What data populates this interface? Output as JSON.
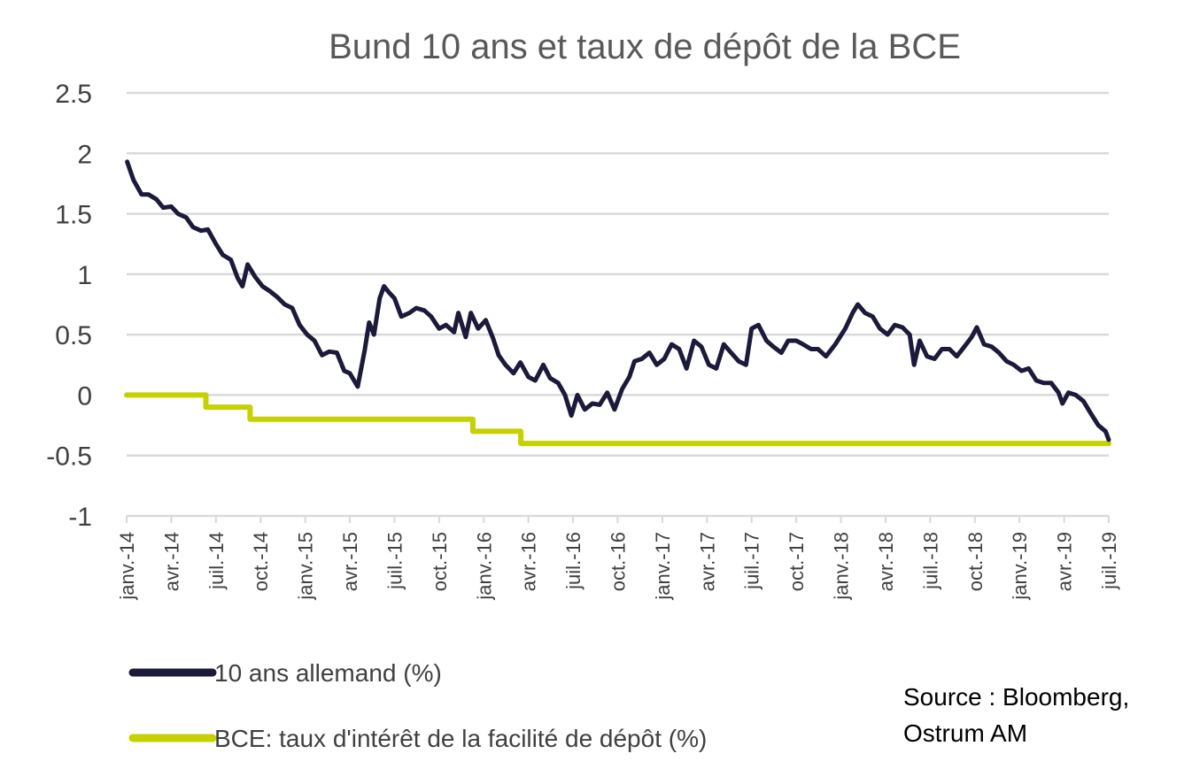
{
  "chart_data": {
    "type": "line",
    "title": "Bund 10 ans et taux de dépôt de la BCE",
    "xlabel": "",
    "ylabel": "",
    "ylim": [
      -1,
      2.5
    ],
    "yticks": [
      "2.5",
      "2",
      "1.5",
      "1",
      "0.5",
      "0",
      "-0.5",
      "-1"
    ],
    "ytick_values": [
      2.5,
      2,
      1.5,
      1,
      0.5,
      0,
      -0.5,
      -1
    ],
    "x_range": [
      "2014-01",
      "2019-07"
    ],
    "xtick_labels": [
      "janv.-14",
      "avr.-14",
      "juil.-14",
      "oct.-14",
      "janv.-15",
      "avr.-15",
      "juil.-15",
      "oct.-15",
      "janv.-16",
      "avr.-16",
      "juil.-16",
      "oct.-16",
      "janv.-17",
      "avr.-17",
      "juil.-17",
      "oct.-17",
      "janv.-18",
      "avr.-18",
      "juil.-18",
      "oct.-18",
      "janv.-19",
      "avr.-19",
      "juil.-19"
    ],
    "grid": true,
    "legend_position": "bottom-left",
    "series": [
      {
        "name": "10 ans allemand (%)",
        "color": "#1b1a3a",
        "points": [
          [
            "2014-01-02",
            1.93
          ],
          [
            "2014-01-15",
            1.78
          ],
          [
            "2014-02-01",
            1.66
          ],
          [
            "2014-02-15",
            1.66
          ],
          [
            "2014-03-01",
            1.62
          ],
          [
            "2014-03-15",
            1.55
          ],
          [
            "2014-04-01",
            1.56
          ],
          [
            "2014-04-15",
            1.5
          ],
          [
            "2014-05-01",
            1.47
          ],
          [
            "2014-05-15",
            1.39
          ],
          [
            "2014-06-01",
            1.36
          ],
          [
            "2014-06-15",
            1.37
          ],
          [
            "2014-07-01",
            1.25
          ],
          [
            "2014-07-15",
            1.16
          ],
          [
            "2014-08-01",
            1.12
          ],
          [
            "2014-08-15",
            0.97
          ],
          [
            "2014-08-25",
            0.9
          ],
          [
            "2014-09-05",
            1.08
          ],
          [
            "2014-09-20",
            0.98
          ],
          [
            "2014-10-05",
            0.9
          ],
          [
            "2014-10-20",
            0.86
          ],
          [
            "2014-11-05",
            0.81
          ],
          [
            "2014-11-20",
            0.75
          ],
          [
            "2014-12-05",
            0.72
          ],
          [
            "2014-12-20",
            0.58
          ],
          [
            "2015-01-05",
            0.5
          ],
          [
            "2015-01-20",
            0.45
          ],
          [
            "2015-02-05",
            0.33
          ],
          [
            "2015-02-20",
            0.36
          ],
          [
            "2015-03-05",
            0.35
          ],
          [
            "2015-03-20",
            0.2
          ],
          [
            "2015-04-01",
            0.18
          ],
          [
            "2015-04-17",
            0.07
          ],
          [
            "2015-05-01",
            0.37
          ],
          [
            "2015-05-10",
            0.6
          ],
          [
            "2015-05-20",
            0.5
          ],
          [
            "2015-06-01",
            0.8
          ],
          [
            "2015-06-10",
            0.9
          ],
          [
            "2015-06-20",
            0.85
          ],
          [
            "2015-07-01",
            0.8
          ],
          [
            "2015-07-15",
            0.65
          ],
          [
            "2015-08-01",
            0.68
          ],
          [
            "2015-08-15",
            0.72
          ],
          [
            "2015-09-01",
            0.7
          ],
          [
            "2015-09-15",
            0.65
          ],
          [
            "2015-10-01",
            0.55
          ],
          [
            "2015-10-15",
            0.58
          ],
          [
            "2015-11-01",
            0.52
          ],
          [
            "2015-11-10",
            0.68
          ],
          [
            "2015-11-25",
            0.48
          ],
          [
            "2015-12-05",
            0.68
          ],
          [
            "2015-12-20",
            0.55
          ],
          [
            "2016-01-05",
            0.62
          ],
          [
            "2016-01-20",
            0.47
          ],
          [
            "2016-02-01",
            0.33
          ],
          [
            "2016-02-15",
            0.25
          ],
          [
            "2016-03-01",
            0.18
          ],
          [
            "2016-03-15",
            0.27
          ],
          [
            "2016-04-01",
            0.15
          ],
          [
            "2016-04-15",
            0.12
          ],
          [
            "2016-05-01",
            0.25
          ],
          [
            "2016-05-15",
            0.14
          ],
          [
            "2016-06-01",
            0.1
          ],
          [
            "2016-06-15",
            0.0
          ],
          [
            "2016-06-28",
            -0.17
          ],
          [
            "2016-07-10",
            0.0
          ],
          [
            "2016-07-25",
            -0.12
          ],
          [
            "2016-08-10",
            -0.07
          ],
          [
            "2016-08-25",
            -0.08
          ],
          [
            "2016-09-10",
            0.02
          ],
          [
            "2016-09-25",
            -0.12
          ],
          [
            "2016-10-10",
            0.05
          ],
          [
            "2016-10-25",
            0.15
          ],
          [
            "2016-11-05",
            0.28
          ],
          [
            "2016-11-20",
            0.3
          ],
          [
            "2016-12-05",
            0.35
          ],
          [
            "2016-12-20",
            0.25
          ],
          [
            "2017-01-05",
            0.3
          ],
          [
            "2017-01-20",
            0.42
          ],
          [
            "2017-02-05",
            0.38
          ],
          [
            "2017-02-20",
            0.22
          ],
          [
            "2017-03-05",
            0.45
          ],
          [
            "2017-03-20",
            0.4
          ],
          [
            "2017-04-05",
            0.25
          ],
          [
            "2017-04-20",
            0.22
          ],
          [
            "2017-05-05",
            0.42
          ],
          [
            "2017-05-20",
            0.35
          ],
          [
            "2017-06-05",
            0.28
          ],
          [
            "2017-06-20",
            0.25
          ],
          [
            "2017-07-01",
            0.55
          ],
          [
            "2017-07-15",
            0.58
          ],
          [
            "2017-08-01",
            0.45
          ],
          [
            "2017-08-15",
            0.4
          ],
          [
            "2017-09-01",
            0.35
          ],
          [
            "2017-09-15",
            0.45
          ],
          [
            "2017-10-01",
            0.45
          ],
          [
            "2017-10-15",
            0.42
          ],
          [
            "2017-11-01",
            0.38
          ],
          [
            "2017-11-15",
            0.38
          ],
          [
            "2017-12-01",
            0.32
          ],
          [
            "2017-12-20",
            0.42
          ],
          [
            "2018-01-10",
            0.55
          ],
          [
            "2018-01-25",
            0.68
          ],
          [
            "2018-02-05",
            0.75
          ],
          [
            "2018-02-20",
            0.68
          ],
          [
            "2018-03-05",
            0.65
          ],
          [
            "2018-03-20",
            0.55
          ],
          [
            "2018-04-05",
            0.5
          ],
          [
            "2018-04-20",
            0.58
          ],
          [
            "2018-05-05",
            0.56
          ],
          [
            "2018-05-20",
            0.5
          ],
          [
            "2018-05-29",
            0.25
          ],
          [
            "2018-06-10",
            0.45
          ],
          [
            "2018-06-25",
            0.32
          ],
          [
            "2018-07-10",
            0.3
          ],
          [
            "2018-07-25",
            0.38
          ],
          [
            "2018-08-10",
            0.38
          ],
          [
            "2018-08-25",
            0.32
          ],
          [
            "2018-09-10",
            0.4
          ],
          [
            "2018-09-25",
            0.48
          ],
          [
            "2018-10-05",
            0.56
          ],
          [
            "2018-10-20",
            0.42
          ],
          [
            "2018-11-05",
            0.4
          ],
          [
            "2018-11-20",
            0.35
          ],
          [
            "2018-12-05",
            0.28
          ],
          [
            "2018-12-20",
            0.25
          ],
          [
            "2019-01-05",
            0.2
          ],
          [
            "2019-01-20",
            0.22
          ],
          [
            "2019-02-05",
            0.12
          ],
          [
            "2019-02-20",
            0.1
          ],
          [
            "2019-03-05",
            0.1
          ],
          [
            "2019-03-20",
            0.02
          ],
          [
            "2019-03-28",
            -0.07
          ],
          [
            "2019-04-10",
            0.02
          ],
          [
            "2019-04-25",
            0.0
          ],
          [
            "2019-05-10",
            -0.05
          ],
          [
            "2019-05-25",
            -0.15
          ],
          [
            "2019-06-10",
            -0.25
          ],
          [
            "2019-06-25",
            -0.3
          ],
          [
            "2019-07-01",
            -0.37
          ]
        ]
      },
      {
        "name": "BCE: taux d'intérêt de la facilité de dépôt (%)",
        "color": "#c5d100",
        "points": [
          [
            "2014-01-01",
            0.0
          ],
          [
            "2014-06-11",
            0.0
          ],
          [
            "2014-06-11",
            -0.1
          ],
          [
            "2014-09-10",
            -0.1
          ],
          [
            "2014-09-10",
            -0.2
          ],
          [
            "2015-12-09",
            -0.2
          ],
          [
            "2015-12-09",
            -0.3
          ],
          [
            "2016-03-16",
            -0.3
          ],
          [
            "2016-03-16",
            -0.4
          ],
          [
            "2019-07-01",
            -0.4
          ]
        ]
      }
    ]
  },
  "source_lines": [
    "Source : Bloomberg,",
    "Ostrum AM"
  ]
}
